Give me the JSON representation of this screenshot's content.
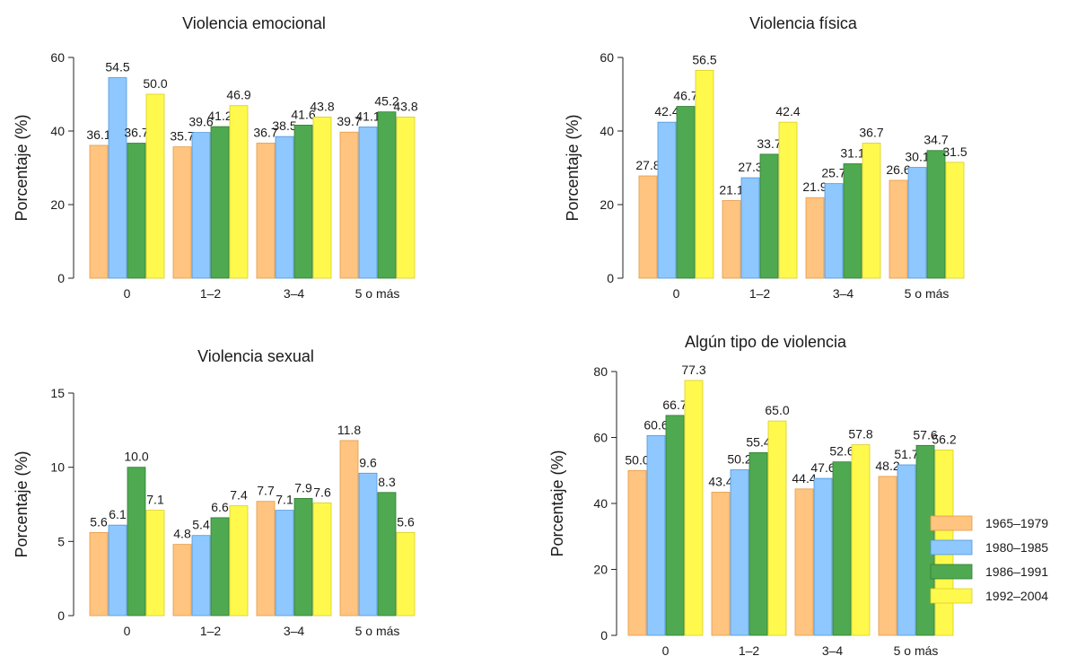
{
  "colors": [
    "#FFC47F",
    "#8EC8FF",
    "#4FA950",
    "#FFF94D"
  ],
  "strokes": [
    "#E59A45",
    "#4F95D9",
    "#2E7D34",
    "#D9CE23"
  ],
  "chart_data": [
    {
      "type": "bar",
      "title": "Violencia emocional",
      "ylabel": "Porcentaje (%)",
      "ylim": [
        0,
        60
      ],
      "yticks": [
        "0",
        "20",
        "40",
        "60"
      ],
      "categories": [
        "0",
        "1–2",
        "3–4",
        "5 o más"
      ],
      "series": [
        {
          "name": "1965–1979",
          "values": [
            36.1,
            35.7,
            36.7,
            39.7
          ],
          "labels": [
            "36.1",
            "35.7",
            "36.7",
            "39.7"
          ]
        },
        {
          "name": "1980–1985",
          "values": [
            54.5,
            39.6,
            38.5,
            41.1
          ],
          "labels": [
            "54.5",
            "39.6",
            "38.5",
            "41.1"
          ]
        },
        {
          "name": "1986–1991",
          "values": [
            36.7,
            41.2,
            41.6,
            45.2
          ],
          "labels": [
            "36.7",
            "41.2",
            "41.6",
            "45.2"
          ]
        },
        {
          "name": "1992–2004",
          "values": [
            50.0,
            46.9,
            43.8,
            43.8
          ],
          "labels": [
            "50.0",
            "46.9",
            "43.8",
            "43.8"
          ]
        }
      ]
    },
    {
      "type": "bar",
      "title": "Violencia física",
      "ylabel": "Porcentaje (%)",
      "ylim": [
        0,
        60
      ],
      "yticks": [
        "0",
        "20",
        "40",
        "60"
      ],
      "categories": [
        "0",
        "1–2",
        "3–4",
        "5 o más"
      ],
      "series": [
        {
          "name": "1965–1979",
          "values": [
            27.8,
            21.1,
            21.9,
            26.6
          ],
          "labels": [
            "27.8",
            "21.1",
            "21.9",
            "26.6"
          ]
        },
        {
          "name": "1980–1985",
          "values": [
            42.4,
            27.3,
            25.7,
            30.1
          ],
          "labels": [
            "42.4",
            "27.3",
            "25.7",
            "30.1"
          ]
        },
        {
          "name": "1986–1991",
          "values": [
            46.7,
            33.7,
            31.1,
            34.7
          ],
          "labels": [
            "46.7",
            "33.7",
            "31.1",
            "34.7"
          ]
        },
        {
          "name": "1992–2004",
          "values": [
            56.5,
            42.4,
            36.7,
            31.5
          ],
          "labels": [
            "56.5",
            "42.4",
            "36.7",
            "31.5"
          ]
        }
      ]
    },
    {
      "type": "bar",
      "title": "Violencia sexual",
      "ylabel": "Porcentaje (%)",
      "ylim": [
        0,
        15
      ],
      "yticks": [
        "0",
        "5",
        "10",
        "15"
      ],
      "categories": [
        "0",
        "1–2",
        "3–4",
        "5 o más"
      ],
      "series": [
        {
          "name": "1965–1979",
          "values": [
            5.6,
            4.8,
            7.7,
            11.8
          ],
          "labels": [
            "5.6",
            "4.8",
            "7.7",
            "11.8"
          ]
        },
        {
          "name": "1980–1985",
          "values": [
            6.1,
            5.4,
            7.1,
            9.6
          ],
          "labels": [
            "6.1",
            "5.4",
            "7.1",
            "9.6"
          ]
        },
        {
          "name": "1986–1991",
          "values": [
            10.0,
            6.6,
            7.9,
            8.3
          ],
          "labels": [
            "10.0",
            "6.6",
            "7.9",
            "8.3"
          ]
        },
        {
          "name": "1992–2004",
          "values": [
            7.1,
            7.4,
            7.6,
            5.6
          ],
          "labels": [
            "7.1",
            "7.4",
            "7.6",
            "5.6"
          ]
        }
      ]
    },
    {
      "type": "bar",
      "title": "Algún tipo de violencia",
      "ylabel": "Porcentaje (%)",
      "ylim": [
        0,
        80
      ],
      "yticks": [
        "0",
        "20",
        "40",
        "60",
        "80"
      ],
      "categories": [
        "0",
        "1–2",
        "3–4",
        "5 o más"
      ],
      "series": [
        {
          "name": "1965–1979",
          "values": [
            50.0,
            43.4,
            44.4,
            48.2
          ],
          "labels": [
            "50.0",
            "43.4",
            "44.4",
            "48.2"
          ]
        },
        {
          "name": "1980–1985",
          "values": [
            60.6,
            50.2,
            47.6,
            51.7
          ],
          "labels": [
            "60.6",
            "50.2",
            "47.6",
            "51.7"
          ]
        },
        {
          "name": "1986–1991",
          "values": [
            66.7,
            55.4,
            52.6,
            57.6
          ],
          "labels": [
            "66.7",
            "55.4",
            "52.6",
            "57.6"
          ]
        },
        {
          "name": "1992–2004",
          "values": [
            77.3,
            65.0,
            57.8,
            56.2
          ],
          "labels": [
            "77.3",
            "65.0",
            "57.8",
            "56.2"
          ]
        }
      ]
    }
  ],
  "legend": {
    "placement": "right",
    "entries": [
      "1965–1979",
      "1980–1985",
      "1986–1991",
      "1992–2004"
    ]
  }
}
